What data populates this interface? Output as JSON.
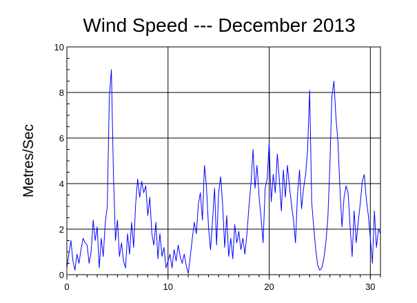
{
  "chart_data": {
    "type": "line",
    "title": "Wind Speed --- December 2013",
    "xlabel": "",
    "ylabel": "Metres/Sec",
    "xlim": [
      0,
      31
    ],
    "ylim": [
      0,
      10
    ],
    "x_ticks": [
      0,
      10,
      20,
      30
    ],
    "y_ticks": [
      0,
      2,
      4,
      6,
      8,
      10
    ],
    "grid": true,
    "legend": "none",
    "series": [
      {
        "color": "#0000ff",
        "x": [
          0,
          0.2,
          0.4,
          0.6,
          0.8,
          1.0,
          1.2,
          1.4,
          1.6,
          1.8,
          2.0,
          2.2,
          2.4,
          2.6,
          2.8,
          3.0,
          3.2,
          3.4,
          3.6,
          3.8,
          4.0,
          4.2,
          4.4,
          4.6,
          4.8,
          5.0,
          5.2,
          5.4,
          5.6,
          5.8,
          6.0,
          6.2,
          6.4,
          6.6,
          6.8,
          7.0,
          7.2,
          7.4,
          7.6,
          7.8,
          8.0,
          8.2,
          8.4,
          8.6,
          8.8,
          9.0,
          9.2,
          9.4,
          9.6,
          9.8,
          10.0,
          10.2,
          10.4,
          10.6,
          10.8,
          11.0,
          11.2,
          11.4,
          11.6,
          11.8,
          12.0,
          12.2,
          12.4,
          12.6,
          12.8,
          13.0,
          13.2,
          13.4,
          13.6,
          13.8,
          14.0,
          14.2,
          14.4,
          14.6,
          14.8,
          15.0,
          15.2,
          15.4,
          15.6,
          15.8,
          16.0,
          16.2,
          16.4,
          16.6,
          16.8,
          17.0,
          17.2,
          17.4,
          17.6,
          17.8,
          18.0,
          18.2,
          18.4,
          18.6,
          18.8,
          19.0,
          19.2,
          19.4,
          19.6,
          19.8,
          20.0,
          20.2,
          20.4,
          20.6,
          20.8,
          21.0,
          21.2,
          21.4,
          21.6,
          21.8,
          22.0,
          22.2,
          22.4,
          22.6,
          22.8,
          23.0,
          23.2,
          23.4,
          23.6,
          23.8,
          24.0,
          24.2,
          24.4,
          24.6,
          24.8,
          25.0,
          25.2,
          25.4,
          25.6,
          25.8,
          26.0,
          26.2,
          26.4,
          26.6,
          26.8,
          27.0,
          27.2,
          27.4,
          27.6,
          27.8,
          28.0,
          28.2,
          28.4,
          28.6,
          28.8,
          29.0,
          29.2,
          29.4,
          29.6,
          29.8,
          30.0,
          30.2,
          30.4,
          30.6,
          30.8,
          31.0
        ],
        "y": [
          0.3,
          0.9,
          1.5,
          0.6,
          0.2,
          0.9,
          0.5,
          1.1,
          1.6,
          1.4,
          1.3,
          0.5,
          1.0,
          2.4,
          1.5,
          2.1,
          0.3,
          1.6,
          0.8,
          2.3,
          3.0,
          7.8,
          9.0,
          4.5,
          1.5,
          2.4,
          0.8,
          1.4,
          0.6,
          0.3,
          1.8,
          0.9,
          2.3,
          1.2,
          3.1,
          4.2,
          3.4,
          4.1,
          3.6,
          3.9,
          2.6,
          3.4,
          1.8,
          1.3,
          2.3,
          0.7,
          1.8,
          0.8,
          1.2,
          0.3,
          0.6,
          0.9,
          0.3,
          1.1,
          0.6,
          1.3,
          0.8,
          0.5,
          0.9,
          0.4,
          0.05,
          0.8,
          1.6,
          2.3,
          1.8,
          3.1,
          3.6,
          2.4,
          4.8,
          3.9,
          2.1,
          1.1,
          2.4,
          3.8,
          1.3,
          3.6,
          4.3,
          3.1,
          1.2,
          2.6,
          0.8,
          1.6,
          0.7,
          2.2,
          1.4,
          1.9,
          1.1,
          1.6,
          0.9,
          1.8,
          3.0,
          4.0,
          5.5,
          3.8,
          4.8,
          3.4,
          2.5,
          1.4,
          3.8,
          4.2,
          5.8,
          3.2,
          4.4,
          3.6,
          5.3,
          4.2,
          2.8,
          4.6,
          3.4,
          4.8,
          3.9,
          3.1,
          2.4,
          1.4,
          3.5,
          4.6,
          2.9,
          3.8,
          4.4,
          5.5,
          8.1,
          3.2,
          2.1,
          1.1,
          0.4,
          0.2,
          0.3,
          0.7,
          1.4,
          2.5,
          4.8,
          7.8,
          8.5,
          6.9,
          5.8,
          3.7,
          2.1,
          3.4,
          3.9,
          3.6,
          2.1,
          0.8,
          2.8,
          1.4,
          2.3,
          3.1,
          4.1,
          4.4,
          3.3,
          2.6,
          1.6,
          0.5,
          2.8,
          1.2,
          2.0,
          1.8
        ]
      }
    ]
  }
}
